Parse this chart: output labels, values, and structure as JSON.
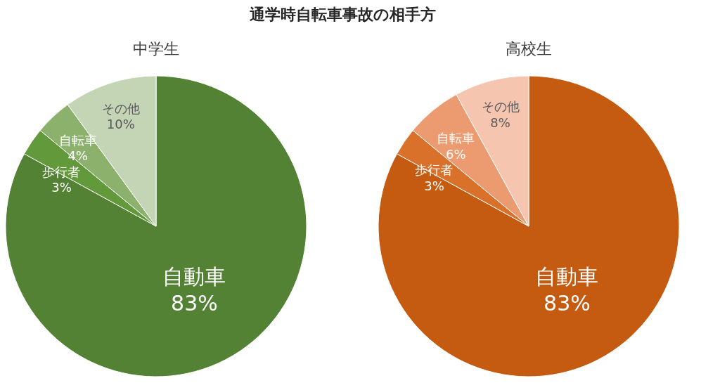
{
  "chart_data": [
    {
      "type": "pie",
      "title": "通学時自転車事故の相手方",
      "subtitle": "中学生",
      "categories": [
        "自動車",
        "歩行者",
        "自転車",
        "その他"
      ],
      "values": [
        83,
        3,
        4,
        10
      ],
      "value_labels": [
        "83%",
        "3%",
        "4%",
        "10%"
      ],
      "colors": [
        "#548235",
        "#62993a",
        "#8bb16d",
        "#c3d5b5"
      ]
    },
    {
      "type": "pie",
      "subtitle": "高校生",
      "categories": [
        "自動車",
        "歩行者",
        "自転車",
        "その他"
      ],
      "values": [
        83,
        3,
        6,
        8
      ],
      "value_labels": [
        "83%",
        "3%",
        "6%",
        "8%"
      ],
      "colors": [
        "#c55a11",
        "#d9712b",
        "#ec9a70",
        "#f5c5b0"
      ]
    }
  ]
}
